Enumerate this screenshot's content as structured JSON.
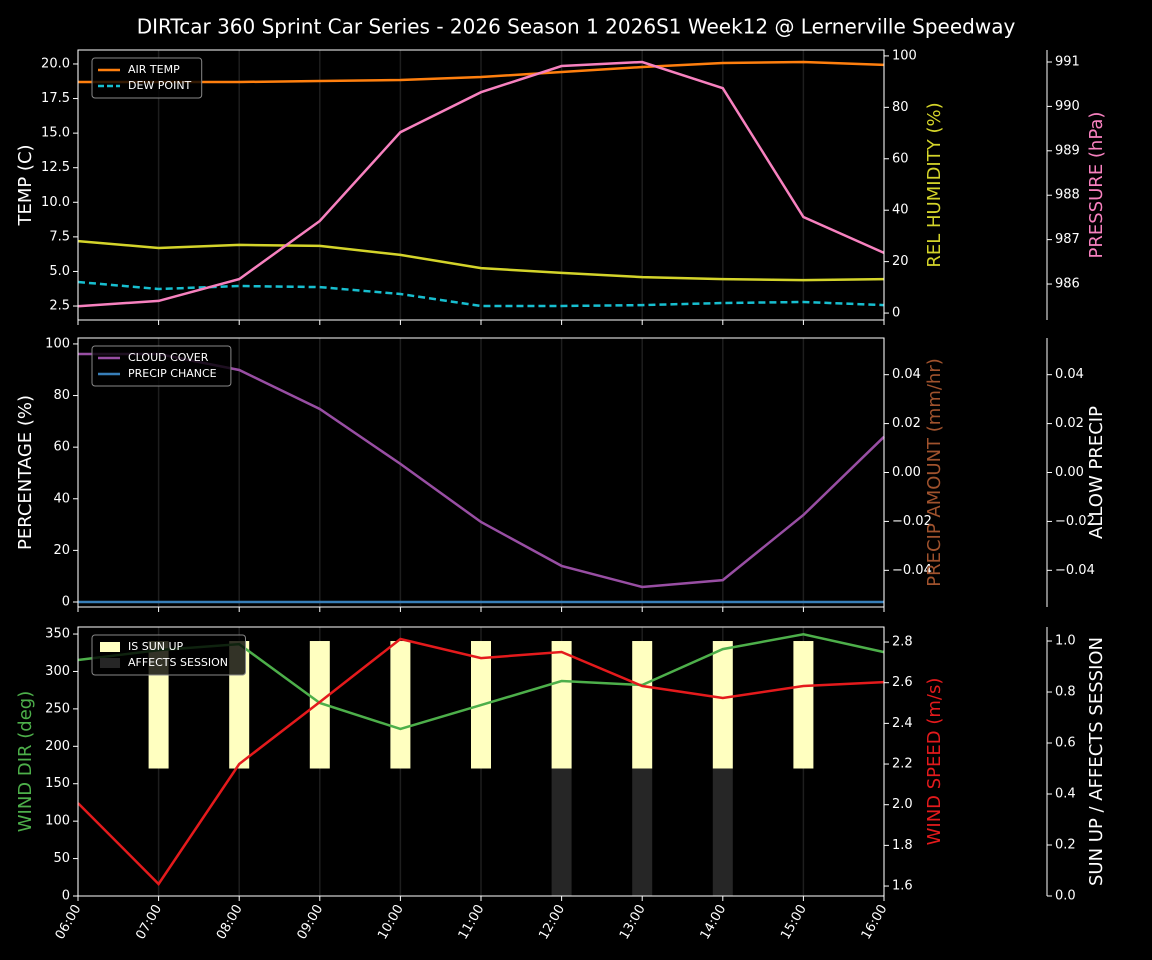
{
  "title": "DIRTcar 360 Sprint Car Series - 2026 Season 1 2026S1 Week12 @ Lernerville Speedway",
  "chart_data": [
    {
      "type": "line",
      "ylabel": "TEMP (C)",
      "y2label": "REL HUMIDITY (%)",
      "y2label_color": "#d4d42a",
      "y3label": "PRESSURE (hPa)",
      "y3label_color": "#f781bf",
      "ylim": [
        1.49,
        21.01
      ],
      "yticks": [
        2.5,
        {
          "value": 5,
          "label": "5.0"
        },
        7.5,
        {
          "value": 10,
          "label": "10.0"
        },
        12.5,
        {
          "value": 15,
          "label": "15.0"
        },
        17.5,
        {
          "value": 20,
          "label": "20.0"
        }
      ],
      "y2lim": [
        -2.7,
        102.3
      ],
      "y2ticks": [
        0,
        20,
        40,
        60,
        80,
        100
      ],
      "y3lim": [
        985.19,
        991.27
      ],
      "y3ticks": [
        986,
        987,
        988,
        989,
        990,
        991
      ],
      "legend": "upper left",
      "series": [
        {
          "name": "AIR TEMP",
          "color": "#ff7f0e",
          "values": [
            18.7,
            18.7,
            18.7,
            18.77,
            18.84,
            19.06,
            19.42,
            19.78,
            20.07,
            20.14,
            19.93
          ]
        },
        {
          "name": "DEW POINT",
          "color": "#17becf",
          "linestyle": "dashed",
          "values": [
            4.24,
            3.73,
            3.95,
            3.87,
            3.37,
            2.5,
            2.5,
            2.57,
            2.72,
            2.79,
            2.57
          ]
        },
        {
          "axis": "y2",
          "color": "#d4d42a",
          "values": [
            28.0,
            25.3,
            26.5,
            26.1,
            22.6,
            17.5,
            15.6,
            14.0,
            13.2,
            12.8,
            13.2
          ]
        },
        {
          "axis": "y3",
          "color": "#f781bf",
          "values": [
            985.5,
            985.62,
            986.11,
            987.42,
            989.42,
            990.32,
            990.91,
            991.0,
            990.41,
            987.51,
            986.7
          ]
        }
      ]
    },
    {
      "type": "line",
      "ylabel": "PERCENTAGE (%)",
      "y2label": "PRECIP AMOUNT (mm/hr)",
      "y2label_color": "#a0522d",
      "y3label": "ALLOW PRECIP",
      "ylim": [
        -1.94,
        102.3
      ],
      "yticks": [
        0,
        20,
        40,
        60,
        80,
        100
      ],
      "y2lim": [
        -0.055,
        0.055
      ],
      "y2ticks": [
        {
          "value": -0.04,
          "label": "−0.04"
        },
        {
          "value": -0.02,
          "label": "−0.02"
        },
        {
          "value": 0,
          "label": "0.00"
        },
        0.02,
        0.04
      ],
      "y3lim": [
        -0.055,
        0.055
      ],
      "y3ticks": [
        {
          "value": -0.04,
          "label": "−0.04"
        },
        {
          "value": -0.02,
          "label": "−0.02"
        },
        {
          "value": 0,
          "label": "0.00"
        },
        0.02,
        0.04
      ],
      "legend": "upper left",
      "series": [
        {
          "name": "CLOUD COVER",
          "color": "#984ea3",
          "values": [
            96.1,
            96.1,
            89.9,
            74.8,
            53.5,
            31.0,
            14.0,
            5.8,
            8.5,
            33.7,
            64.0
          ]
        },
        {
          "name": "PRECIP CHANCE",
          "color": "#377eb8",
          "values": [
            0,
            0,
            0,
            0,
            0,
            0,
            0,
            0,
            0,
            0,
            0
          ]
        }
      ]
    },
    {
      "type": "line",
      "ylabel": "WIND DIR (deg)",
      "ylabel_color": "#4daf4a",
      "y2label": "WIND SPEED (m/s)",
      "y2label_color": "#e41a1c",
      "y3label": "SUN UP / AFFECTS SESSION",
      "categories": [
        "06:00",
        "07:00",
        "08:00",
        "09:00",
        "10:00",
        "11:00",
        "12:00",
        "13:00",
        "14:00",
        "15:00",
        "16:00"
      ],
      "ylim": [
        0,
        359.4
      ],
      "yticks": [
        0,
        50,
        100,
        150,
        200,
        250,
        300,
        350
      ],
      "y2lim": [
        1.551,
        2.874
      ],
      "y2ticks": [
        1.6,
        1.8,
        {
          "value": 2,
          "label": "2.0"
        },
        2.2,
        2.4,
        2.6,
        2.8
      ],
      "y3lim": [
        0,
        1.055
      ],
      "y3ticks": [
        {
          "value": 0,
          "label": "0.0"
        },
        0.2,
        0.4,
        0.6,
        0.8,
        {
          "value": 1,
          "label": "1.0"
        }
      ],
      "legend": "upper left",
      "series": [
        {
          "name": "IS SUN UP",
          "type": "bar",
          "axis": "y3",
          "half": "upper",
          "color": "#ffffc0",
          "values": [
            0,
            1,
            1,
            1,
            1,
            1,
            1,
            1,
            1,
            1,
            0
          ]
        },
        {
          "name": "AFFECTS SESSION",
          "type": "bar",
          "axis": "y3",
          "half": "lower",
          "color": "#262626",
          "values": [
            0,
            0,
            0,
            0,
            0,
            0,
            1,
            1,
            1,
            0,
            0
          ]
        },
        {
          "axis": "y",
          "color": "#4daf4a",
          "values": [
            315.3,
            328.6,
            336.6,
            257.8,
            223.1,
            255.1,
            287.2,
            281.9,
            329.9,
            349.6,
            325.9
          ]
        },
        {
          "axis": "y2",
          "color": "#e41a1c",
          "values": [
            2.008,
            1.61,
            2.2,
            2.505,
            2.815,
            2.721,
            2.751,
            2.584,
            2.525,
            2.584,
            2.603
          ]
        }
      ]
    }
  ]
}
